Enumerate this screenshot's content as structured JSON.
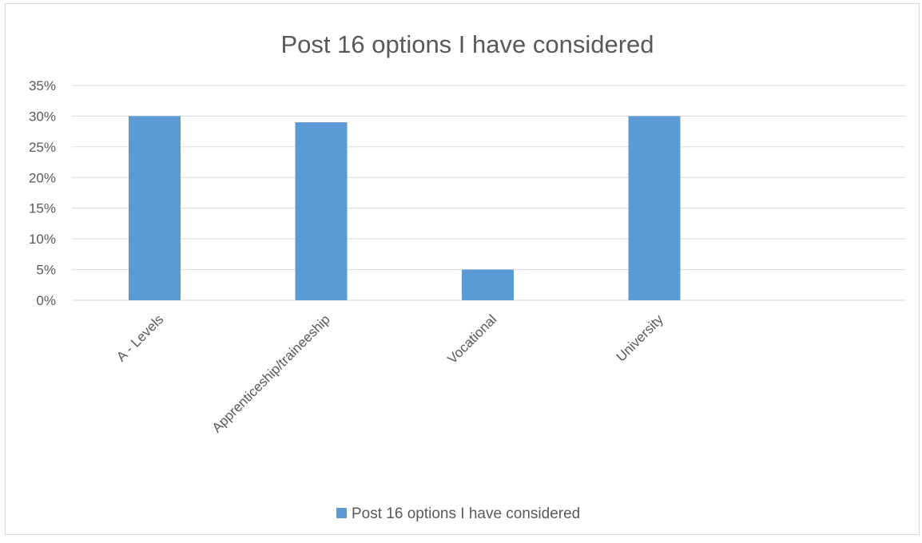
{
  "chart_data": {
    "type": "bar",
    "title": "Post 16 options I have considered",
    "categories": [
      "A - Levels",
      "Apprenticeship/traineeship",
      "Vocational",
      "University"
    ],
    "series": [
      {
        "name": "Post 16 options I have considered",
        "values": [
          30,
          29,
          5,
          30
        ]
      }
    ],
    "y_ticks": [
      "0%",
      "5%",
      "10%",
      "15%",
      "20%",
      "25%",
      "30%",
      "35%"
    ],
    "ylim": [
      0,
      35
    ],
    "y_unit": "%",
    "xlabel": "",
    "ylabel": "",
    "grid": true,
    "legend_position": "bottom",
    "bar_color": "#5b9bd5",
    "grid_color": "#d9d9d9",
    "text_color": "#595959"
  }
}
